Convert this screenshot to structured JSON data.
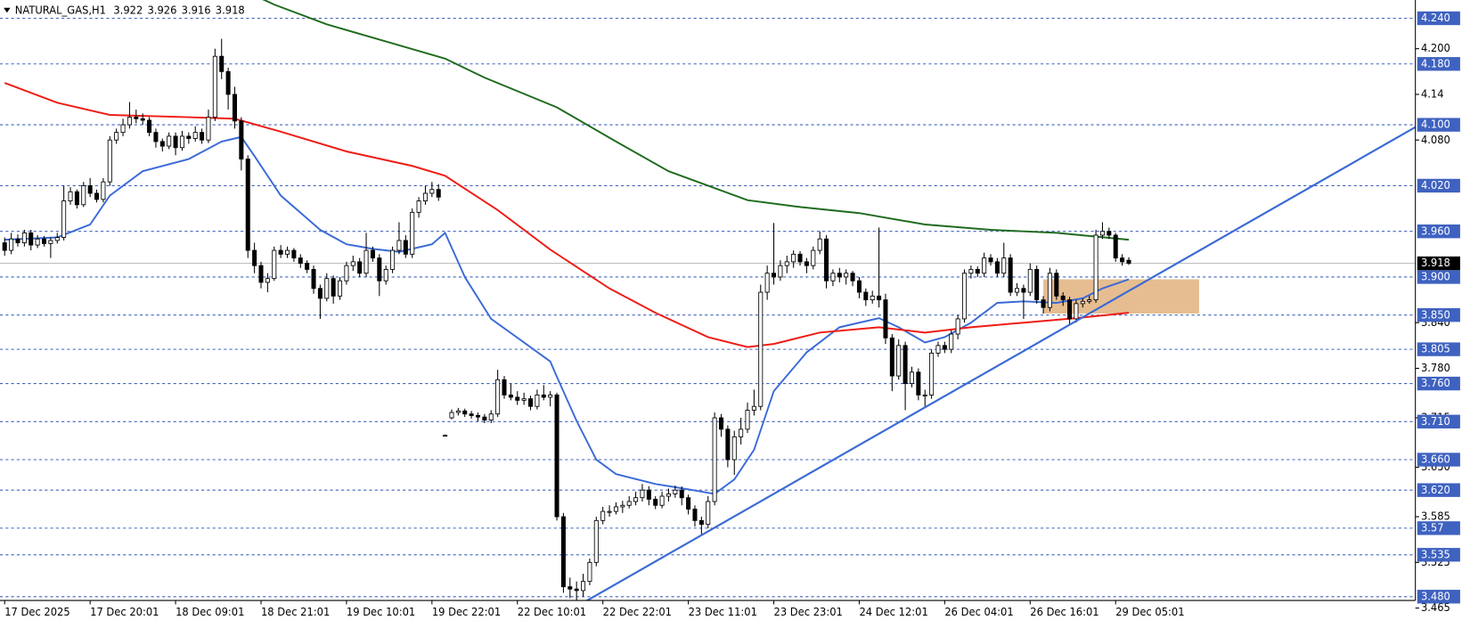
{
  "chart_data": {
    "type": "candlestick",
    "symbol": "NATURAL_GAS,H1",
    "colors": {
      "up": "#ffffff",
      "down": "#000000",
      "outline": "#000000"
    },
    "candles": [
      [
        3.945,
        3.952,
        3.928,
        3.935
      ],
      [
        3.935,
        3.958,
        3.93,
        3.95
      ],
      [
        3.95,
        3.956,
        3.94,
        3.945
      ],
      [
        3.945,
        3.962,
        3.94,
        3.958
      ],
      [
        3.958,
        3.962,
        3.935,
        3.942
      ],
      [
        3.942,
        3.955,
        3.938,
        3.95
      ],
      [
        3.95,
        3.954,
        3.94,
        3.944
      ],
      [
        3.944,
        3.952,
        3.925,
        3.948
      ],
      [
        3.948,
        3.958,
        3.944,
        3.952
      ],
      [
        3.952,
        4.02,
        3.948,
        4.0
      ],
      [
        4.0,
        4.018,
        3.995,
        4.012
      ],
      [
        4.012,
        4.015,
        3.99,
        3.995
      ],
      [
        3.995,
        4.025,
        3.992,
        4.02
      ],
      [
        4.02,
        4.03,
        4.005,
        4.01
      ],
      [
        4.01,
        4.015,
        3.998,
        4.002
      ],
      [
        4.002,
        4.03,
        3.998,
        4.025
      ],
      [
        4.025,
        4.085,
        4.02,
        4.08
      ],
      [
        4.08,
        4.095,
        4.075,
        4.09
      ],
      [
        4.09,
        4.108,
        4.085,
        4.1
      ],
      [
        4.1,
        4.13,
        4.095,
        4.11
      ],
      [
        4.11,
        4.12,
        4.102,
        4.108
      ],
      [
        4.108,
        4.115,
        4.1,
        4.106
      ],
      [
        4.106,
        4.11,
        4.085,
        4.09
      ],
      [
        4.09,
        4.095,
        4.07,
        4.078
      ],
      [
        4.078,
        4.082,
        4.065,
        4.072
      ],
      [
        4.072,
        4.09,
        4.068,
        4.085
      ],
      [
        4.085,
        4.09,
        4.06,
        4.07
      ],
      [
        4.07,
        4.092,
        4.066,
        4.085
      ],
      [
        4.085,
        4.09,
        4.075,
        4.082
      ],
      [
        4.082,
        4.098,
        4.078,
        4.09
      ],
      [
        4.09,
        4.095,
        4.075,
        4.08
      ],
      [
        4.08,
        4.12,
        4.076,
        4.11
      ],
      [
        4.11,
        4.2,
        4.105,
        4.19
      ],
      [
        4.19,
        4.213,
        4.16,
        4.17
      ],
      [
        4.17,
        4.175,
        4.12,
        4.14
      ],
      [
        4.14,
        4.15,
        4.095,
        4.105
      ],
      [
        4.105,
        4.11,
        4.04,
        4.055
      ],
      [
        4.055,
        4.06,
        3.925,
        3.935
      ],
      [
        3.935,
        3.945,
        3.905,
        3.915
      ],
      [
        3.915,
        3.92,
        3.885,
        3.893
      ],
      [
        3.893,
        3.905,
        3.88,
        3.898
      ],
      [
        3.898,
        3.94,
        3.895,
        3.935
      ],
      [
        3.935,
        3.942,
        3.925,
        3.93
      ],
      [
        3.93,
        3.94,
        3.925,
        3.935
      ],
      [
        3.935,
        3.938,
        3.92,
        3.925
      ],
      [
        3.925,
        3.93,
        3.912,
        3.918
      ],
      [
        3.918,
        3.922,
        3.905,
        3.91
      ],
      [
        3.91,
        3.915,
        3.878,
        3.885
      ],
      [
        3.885,
        3.89,
        3.845,
        3.872
      ],
      [
        3.872,
        3.905,
        3.868,
        3.898
      ],
      [
        3.898,
        3.902,
        3.865,
        3.875
      ],
      [
        3.875,
        3.9,
        3.87,
        3.895
      ],
      [
        3.895,
        3.92,
        3.89,
        3.915
      ],
      [
        3.915,
        3.928,
        3.908,
        3.92
      ],
      [
        3.92,
        3.925,
        3.9,
        3.905
      ],
      [
        3.905,
        3.958,
        3.9,
        3.935
      ],
      [
        3.935,
        3.94,
        3.92,
        3.925
      ],
      [
        3.925,
        3.93,
        3.875,
        3.895
      ],
      [
        3.895,
        3.915,
        3.89,
        3.91
      ],
      [
        3.91,
        3.94,
        3.905,
        3.935
      ],
      [
        3.935,
        3.972,
        3.93,
        3.948
      ],
      [
        3.948,
        3.955,
        3.925,
        3.93
      ],
      [
        3.93,
        3.99,
        3.925,
        3.985
      ],
      [
        3.985,
        4.005,
        3.978,
        4.0
      ],
      [
        4.0,
        4.02,
        3.995,
        4.01
      ],
      [
        4.01,
        4.025,
        4.005,
        4.015
      ],
      [
        4.015,
        4.022,
        4.0,
        4.005
      ],
      [
        3.692,
        3.693,
        3.691,
        3.692
      ],
      [
        3.715,
        3.726,
        3.713,
        3.722
      ],
      [
        3.722,
        3.728,
        3.718,
        3.724
      ],
      [
        3.724,
        3.727,
        3.716,
        3.72
      ],
      [
        3.72,
        3.724,
        3.714,
        3.718
      ],
      [
        3.718,
        3.722,
        3.71,
        3.716
      ],
      [
        3.716,
        3.72,
        3.708,
        3.712
      ],
      [
        3.712,
        3.725,
        3.708,
        3.72
      ],
      [
        3.72,
        3.778,
        3.716,
        3.765
      ],
      [
        3.765,
        3.77,
        3.74,
        3.745
      ],
      [
        3.745,
        3.76,
        3.738,
        3.742
      ],
      [
        3.742,
        3.75,
        3.732,
        3.738
      ],
      [
        3.738,
        3.748,
        3.732,
        3.74
      ],
      [
        3.74,
        3.744,
        3.725,
        3.73
      ],
      [
        3.73,
        3.752,
        3.726,
        3.745
      ],
      [
        3.745,
        3.758,
        3.738,
        3.742
      ],
      [
        3.742,
        3.75,
        3.73,
        3.745
      ],
      [
        3.745,
        3.748,
        3.58,
        3.585
      ],
      [
        3.585,
        3.59,
        3.485,
        3.493
      ],
      [
        3.493,
        3.505,
        3.478,
        3.49
      ],
      [
        3.49,
        3.5,
        3.465,
        3.488
      ],
      [
        3.488,
        3.51,
        3.48,
        3.5
      ],
      [
        3.5,
        3.53,
        3.495,
        3.525
      ],
      [
        3.525,
        3.585,
        3.52,
        3.58
      ],
      [
        3.58,
        3.598,
        3.575,
        3.592
      ],
      [
        3.592,
        3.6,
        3.585,
        3.592
      ],
      [
        3.592,
        3.604,
        3.588,
        3.598
      ],
      [
        3.598,
        3.606,
        3.59,
        3.6
      ],
      [
        3.6,
        3.612,
        3.596,
        3.605
      ],
      [
        3.605,
        3.618,
        3.6,
        3.61
      ],
      [
        3.61,
        3.628,
        3.605,
        3.62
      ],
      [
        3.62,
        3.625,
        3.6,
        3.608
      ],
      [
        3.608,
        3.612,
        3.595,
        3.6
      ],
      [
        3.6,
        3.618,
        3.596,
        3.612
      ],
      [
        3.612,
        3.622,
        3.605,
        3.615
      ],
      [
        3.615,
        3.626,
        3.61,
        3.62
      ],
      [
        3.62,
        3.625,
        3.6,
        3.61
      ],
      [
        3.61,
        3.614,
        3.588,
        3.595
      ],
      [
        3.595,
        3.6,
        3.572,
        3.58
      ],
      [
        3.58,
        3.585,
        3.562,
        3.575
      ],
      [
        3.575,
        3.612,
        3.57,
        3.605
      ],
      [
        3.605,
        3.722,
        3.6,
        3.715
      ],
      [
        3.715,
        3.72,
        3.69,
        3.7
      ],
      [
        3.7,
        3.705,
        3.65,
        3.66
      ],
      [
        3.66,
        3.698,
        3.64,
        3.69
      ],
      [
        3.69,
        3.715,
        3.68,
        3.7
      ],
      [
        3.7,
        3.735,
        3.695,
        3.725
      ],
      [
        3.725,
        3.752,
        3.718,
        3.73
      ],
      [
        3.73,
        3.89,
        3.725,
        3.88
      ],
      [
        3.88,
        3.915,
        3.87,
        3.905
      ],
      [
        3.905,
        3.971,
        3.89,
        3.9
      ],
      [
        3.9,
        3.922,
        3.895,
        3.915
      ],
      [
        3.915,
        3.928,
        3.905,
        3.92
      ],
      [
        3.92,
        3.935,
        3.912,
        3.93
      ],
      [
        3.93,
        3.934,
        3.915,
        3.92
      ],
      [
        3.92,
        3.925,
        3.905,
        3.915
      ],
      [
        3.915,
        3.94,
        3.91,
        3.935
      ],
      [
        3.935,
        3.96,
        3.93,
        3.95
      ],
      [
        3.95,
        3.955,
        3.885,
        3.895
      ],
      [
        3.895,
        3.91,
        3.888,
        3.905
      ],
      [
        3.905,
        3.912,
        3.893,
        3.9
      ],
      [
        3.9,
        3.91,
        3.89,
        3.905
      ],
      [
        3.905,
        3.908,
        3.888,
        3.895
      ],
      [
        3.895,
        3.9,
        3.872,
        3.88
      ],
      [
        3.88,
        3.885,
        3.862,
        3.87
      ],
      [
        3.87,
        3.882,
        3.865,
        3.875
      ],
      [
        3.875,
        3.965,
        3.86,
        3.87
      ],
      [
        3.87,
        3.878,
        3.812,
        3.82
      ],
      [
        3.82,
        3.825,
        3.75,
        3.77
      ],
      [
        3.77,
        3.818,
        3.765,
        3.81
      ],
      [
        3.81,
        3.815,
        3.725,
        3.76
      ],
      [
        3.76,
        3.782,
        3.755,
        3.775
      ],
      [
        3.775,
        3.78,
        3.738,
        3.745
      ],
      [
        3.745,
        3.752,
        3.728,
        3.745
      ],
      [
        3.745,
        3.805,
        3.74,
        3.8
      ],
      [
        3.8,
        3.815,
        3.795,
        3.81
      ],
      [
        3.81,
        3.815,
        3.8,
        3.805
      ],
      [
        3.805,
        3.83,
        3.8,
        3.825
      ],
      [
        3.825,
        3.85,
        3.818,
        3.845
      ],
      [
        3.845,
        3.91,
        3.84,
        3.905
      ],
      [
        3.905,
        3.915,
        3.898,
        3.91
      ],
      [
        3.91,
        3.914,
        3.9,
        3.905
      ],
      [
        3.905,
        3.932,
        3.9,
        3.925
      ],
      [
        3.925,
        3.93,
        3.915,
        3.92
      ],
      [
        3.92,
        3.925,
        3.9,
        3.905
      ],
      [
        3.905,
        3.945,
        3.9,
        3.925
      ],
      [
        3.925,
        3.93,
        3.875,
        3.88
      ],
      [
        3.88,
        3.892,
        3.875,
        3.885
      ],
      [
        3.885,
        3.89,
        3.845,
        3.88
      ],
      [
        3.88,
        3.918,
        3.875,
        3.91
      ],
      [
        3.91,
        3.915,
        3.865,
        3.87
      ],
      [
        3.87,
        3.875,
        3.852,
        3.86
      ],
      [
        3.86,
        3.912,
        3.855,
        3.905
      ],
      [
        3.905,
        3.91,
        3.87,
        3.875
      ],
      [
        3.875,
        3.88,
        3.862,
        3.87
      ],
      [
        3.87,
        3.874,
        3.838,
        3.845
      ],
      [
        3.845,
        3.87,
        3.84,
        3.865
      ],
      [
        3.865,
        3.872,
        3.86,
        3.868
      ],
      [
        3.868,
        3.875,
        3.865,
        3.87
      ],
      [
        3.87,
        3.962,
        3.866,
        3.955
      ],
      [
        3.955,
        3.972,
        3.95,
        3.96
      ],
      [
        3.96,
        3.965,
        3.95,
        3.955
      ],
      [
        3.955,
        3.958,
        3.92,
        3.925
      ],
      [
        3.925,
        3.93,
        3.915,
        3.92
      ],
      [
        3.922,
        3.926,
        3.916,
        3.918
      ]
    ],
    "moving_averages": [
      {
        "color": "#3a6ad6",
        "x": [
          0,
          8,
          13,
          16,
          21,
          28,
          33,
          36,
          38,
          42,
          48,
          52,
          56,
          60,
          65,
          67,
          70,
          74,
          79,
          83,
          84,
          87,
          90,
          93,
          99,
          104,
          108,
          111,
          114,
          117,
          122,
          127,
          133,
          136,
          140,
          143,
          147,
          151,
          155,
          160,
          164,
          167,
          171
        ],
        "values": [
          3.949,
          3.952,
          3.969,
          4.007,
          4.039,
          4.055,
          4.078,
          4.084,
          4.059,
          4.007,
          3.962,
          3.943,
          3.937,
          3.933,
          3.943,
          3.958,
          3.9,
          3.845,
          3.814,
          3.789,
          3.769,
          3.711,
          3.66,
          3.641,
          3.628,
          3.621,
          3.615,
          3.634,
          3.673,
          3.75,
          3.801,
          3.834,
          3.846,
          3.834,
          3.814,
          3.821,
          3.84,
          3.866,
          3.868,
          3.866,
          3.872,
          3.885,
          3.897
        ]
      },
      {
        "color": "#ee1c14",
        "x": [
          0,
          8,
          16,
          28,
          35,
          42,
          52,
          62,
          67,
          75,
          83,
          92,
          99,
          107,
          113,
          117,
          124,
          133,
          140,
          147,
          155,
          163,
          171
        ],
        "values": [
          4.155,
          4.129,
          4.113,
          4.11,
          4.108,
          4.091,
          4.065,
          4.046,
          4.033,
          3.988,
          3.936,
          3.885,
          3.853,
          3.821,
          3.808,
          3.812,
          3.827,
          3.834,
          3.827,
          3.834,
          3.84,
          3.846,
          3.853
        ]
      },
      {
        "color": "#1f6b1f",
        "x": [
          38,
          41,
          49,
          59,
          67,
          73,
          84,
          93,
          101,
          113,
          121,
          130,
          140,
          150,
          160,
          171
        ],
        "values": [
          4.27,
          4.258,
          4.232,
          4.207,
          4.187,
          4.162,
          4.123,
          4.078,
          4.039,
          4.001,
          3.992,
          3.984,
          3.969,
          3.962,
          3.958,
          3.949
        ]
      }
    ],
    "trendline": {
      "color": "#3a6ad6",
      "x": [
        87,
        214.6
      ],
      "values": [
        3.467,
        4.097
      ]
    },
    "zone": {
      "color": "#e2b27c",
      "x": [
        158,
        181.7
      ],
      "values": [
        3.852,
        3.897
      ]
    },
    "levels": {
      "color": "#3f62c0",
      "values": [
        {
          "value": 4.24,
          "label": "4.240"
        },
        {
          "value": 4.18,
          "label": "4.180"
        },
        {
          "value": 4.1,
          "label": "4.100"
        },
        {
          "value": 4.02,
          "label": "4.020"
        },
        {
          "value": 3.96,
          "label": "3.960"
        },
        {
          "value": 3.9,
          "label": "3.900"
        },
        {
          "value": 3.85,
          "label": "3.850"
        },
        3.805,
        {
          "value": 3.76,
          "label": "3.760"
        },
        {
          "value": 3.71,
          "label": "3.710"
        },
        {
          "value": 3.66,
          "label": "3.660"
        },
        {
          "value": 3.62,
          "label": "3.620"
        },
        3.57,
        3.535,
        {
          "value": 3.48,
          "label": "3.480"
        }
      ]
    },
    "current_price_color": "#c0c0c0",
    "xlim": [
      -0.709,
      214.6
    ],
    "ylim": [
      3.475,
      4.264
    ],
    "xticks": [
      {
        "value": 0,
        "label": "17 Dec 2025"
      },
      {
        "value": 13,
        "label": "17 Dec 20:01"
      },
      {
        "value": 26,
        "label": "18 Dec 09:01"
      },
      {
        "value": 39,
        "label": "18 Dec 21:01"
      },
      {
        "value": 52,
        "label": "19 Dec 10:01"
      },
      {
        "value": 65,
        "label": "19 Dec 22:01"
      },
      {
        "value": 78,
        "label": "22 Dec 10:01"
      },
      {
        "value": 91,
        "label": "22 Dec 22:01"
      },
      {
        "value": 104,
        "label": "23 Dec 11:01"
      },
      {
        "value": 117,
        "label": "23 Dec 23:01"
      },
      {
        "value": 130,
        "label": "24 Dec 12:01"
      },
      {
        "value": 143,
        "label": "26 Dec 04:01"
      },
      {
        "value": 156,
        "label": "26 Dec 16:01"
      },
      {
        "value": 169,
        "label": "29 Dec 05:01"
      }
    ],
    "yticks": [
      {
        "value": 4.2,
        "label": "4.200"
      },
      4.14,
      {
        "value": 4.08,
        "label": "4.080"
      },
      {
        "value": 3.84,
        "label": "3.840"
      },
      {
        "value": 3.78,
        "label": "3.780"
      },
      3.715,
      {
        "value": 3.65,
        "label": "3.650"
      },
      3.585,
      3.525,
      3.465
    ]
  }
}
